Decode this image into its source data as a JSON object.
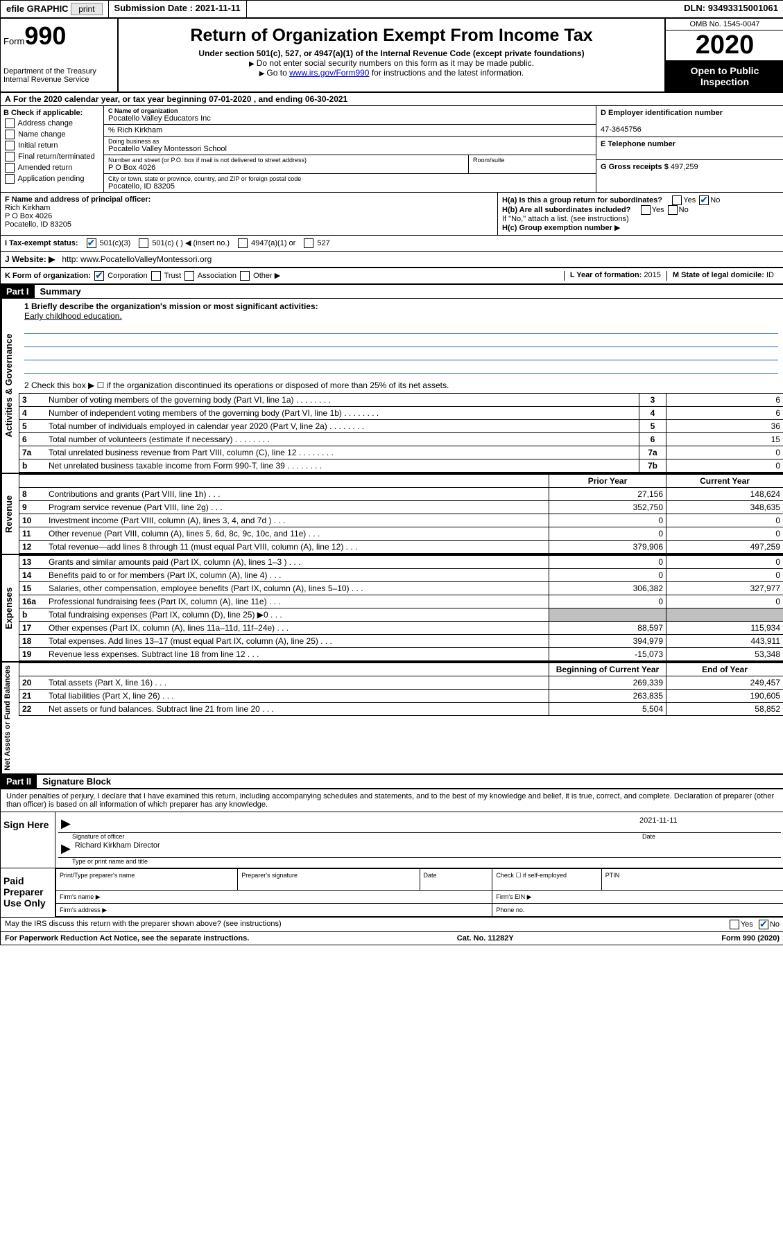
{
  "top_bar": {
    "efile": "efile GRAPHIC",
    "print": "print",
    "submission_label": "Submission Date :",
    "submission_date": "2021-11-11",
    "dln_label": "DLN:",
    "dln": "93493315001061"
  },
  "header": {
    "form_label": "Form",
    "form_number": "990",
    "dept1": "Department of the Treasury",
    "dept2": "Internal Revenue Service",
    "title": "Return of Organization Exempt From Income Tax",
    "subtitle": "Under section 501(c), 527, or 4947(a)(1) of the Internal Revenue Code (except private foundations)",
    "note1": "Do not enter social security numbers on this form as it may be made public.",
    "note2_pre": "Go to ",
    "note2_link": "www.irs.gov/Form990",
    "note2_post": " for instructions and the latest information.",
    "omb": "OMB No. 1545-0047",
    "year": "2020",
    "open_public": "Open to Public Inspection"
  },
  "row_a": {
    "text": "For the 2020 calendar year, or tax year beginning 07-01-2020    , and ending 06-30-2021",
    "prefix": "A"
  },
  "section_b": {
    "label": "B Check if applicable:",
    "items": [
      "Address change",
      "Name change",
      "Initial return",
      "Final return/terminated",
      "Amended return",
      "Application pending"
    ]
  },
  "section_c": {
    "name_label": "C Name of organization",
    "name": "Pocatello Valley Educators Inc",
    "care_of": "% Rich Kirkham",
    "dba_label": "Doing business as",
    "dba": "Pocatello Valley Montessori School",
    "addr_label": "Number and street (or P.O. box if mail is not delivered to street address)",
    "addr": "P O Box 4026",
    "room_label": "Room/suite",
    "city_label": "City or town, state or province, country, and ZIP or foreign postal code",
    "city": "Pocatello, ID  83205"
  },
  "section_d": {
    "ein_label": "D Employer identification number",
    "ein": "47-3645756",
    "tel_label": "E Telephone number",
    "tel": "",
    "gross_label": "G Gross receipts $",
    "gross": "497,259"
  },
  "section_f": {
    "label": "F  Name and address of principal officer:",
    "name": "Rich Kirkham",
    "addr1": "P O Box 4026",
    "addr2": "Pocatello, ID  83205"
  },
  "section_h": {
    "ha_label": "H(a)  Is this a group return for subordinates?",
    "hb_label": "H(b)  Are all subordinates included?",
    "hb_note": "If \"No,\" attach a list. (see instructions)",
    "hc_label": "H(c)  Group exemption number",
    "yes": "Yes",
    "no": "No"
  },
  "row_i": {
    "label": "I  Tax-exempt status:",
    "opt1": "501(c)(3)",
    "opt2": "501(c) (   ) ◀ (insert no.)",
    "opt3": "4947(a)(1) or",
    "opt4": "527"
  },
  "row_j": {
    "label": "J  Website: ▶",
    "value": "http:  www.PocatelloValleyMontessori.org"
  },
  "row_k": {
    "k_label": "K Form of organization:",
    "k_opts": [
      "Corporation",
      "Trust",
      "Association",
      "Other ▶"
    ],
    "l_label": "L Year of formation:",
    "l_val": "2015",
    "m_label": "M State of legal domicile:",
    "m_val": "ID"
  },
  "part1": {
    "header": "Part I",
    "title": "Summary",
    "line1_label": "1  Briefly describe the organization's mission or most significant activities:",
    "line1_val": "Early childhood education.",
    "line2": "2   Check this box ▶ ☐  if the organization discontinued its operations or disposed of more than 25% of its net assets.",
    "vert_labels": {
      "gov": "Activities & Governance",
      "rev": "Revenue",
      "exp": "Expenses",
      "net": "Net Assets or Fund Balances"
    },
    "gov_rows": [
      {
        "n": "3",
        "label": "Number of voting members of the governing body (Part VI, line 1a)",
        "box": "3",
        "val": "6"
      },
      {
        "n": "4",
        "label": "Number of independent voting members of the governing body (Part VI, line 1b)",
        "box": "4",
        "val": "6"
      },
      {
        "n": "5",
        "label": "Total number of individuals employed in calendar year 2020 (Part V, line 2a)",
        "box": "5",
        "val": "36"
      },
      {
        "n": "6",
        "label": "Total number of volunteers (estimate if necessary)",
        "box": "6",
        "val": "15"
      },
      {
        "n": "7a",
        "label": "Total unrelated business revenue from Part VIII, column (C), line 12",
        "box": "7a",
        "val": "0"
      },
      {
        "n": "b",
        "label": "Net unrelated business taxable income from Form 990-T, line 39",
        "box": "7b",
        "val": "0"
      }
    ],
    "year_headers": {
      "prior": "Prior Year",
      "current": "Current Year",
      "begin": "Beginning of Current Year",
      "end": "End of Year"
    },
    "rev_rows": [
      {
        "n": "8",
        "label": "Contributions and grants (Part VIII, line 1h)",
        "prior": "27,156",
        "current": "148,624"
      },
      {
        "n": "9",
        "label": "Program service revenue (Part VIII, line 2g)",
        "prior": "352,750",
        "current": "348,635"
      },
      {
        "n": "10",
        "label": "Investment income (Part VIII, column (A), lines 3, 4, and 7d )",
        "prior": "0",
        "current": "0"
      },
      {
        "n": "11",
        "label": "Other revenue (Part VIII, column (A), lines 5, 6d, 8c, 9c, 10c, and 11e)",
        "prior": "0",
        "current": "0"
      },
      {
        "n": "12",
        "label": "Total revenue—add lines 8 through 11 (must equal Part VIII, column (A), line 12)",
        "prior": "379,906",
        "current": "497,259"
      }
    ],
    "exp_rows": [
      {
        "n": "13",
        "label": "Grants and similar amounts paid (Part IX, column (A), lines 1–3 )",
        "prior": "0",
        "current": "0"
      },
      {
        "n": "14",
        "label": "Benefits paid to or for members (Part IX, column (A), line 4)",
        "prior": "0",
        "current": "0"
      },
      {
        "n": "15",
        "label": "Salaries, other compensation, employee benefits (Part IX, column (A), lines 5–10)",
        "prior": "306,382",
        "current": "327,977"
      },
      {
        "n": "16a",
        "label": "Professional fundraising fees (Part IX, column (A), line 11e)",
        "prior": "0",
        "current": "0"
      },
      {
        "n": "b",
        "label": "Total fundraising expenses (Part IX, column (D), line 25) ▶0",
        "prior": "",
        "current": "",
        "shaded": true
      },
      {
        "n": "17",
        "label": "Other expenses (Part IX, column (A), lines 11a–11d, 11f–24e)",
        "prior": "88,597",
        "current": "115,934"
      },
      {
        "n": "18",
        "label": "Total expenses. Add lines 13–17 (must equal Part IX, column (A), line 25)",
        "prior": "394,979",
        "current": "443,911"
      },
      {
        "n": "19",
        "label": "Revenue less expenses. Subtract line 18 from line 12",
        "prior": "-15,073",
        "current": "53,348"
      }
    ],
    "net_rows": [
      {
        "n": "20",
        "label": "Total assets (Part X, line 16)",
        "prior": "269,339",
        "current": "249,457"
      },
      {
        "n": "21",
        "label": "Total liabilities (Part X, line 26)",
        "prior": "263,835",
        "current": "190,605"
      },
      {
        "n": "22",
        "label": "Net assets or fund balances. Subtract line 21 from line 20",
        "prior": "5,504",
        "current": "58,852"
      }
    ]
  },
  "part2": {
    "header": "Part II",
    "title": "Signature Block",
    "declaration": "Under penalties of perjury, I declare that I have examined this return, including accompanying schedules and statements, and to the best of my knowledge and belief, it is true, correct, and complete. Declaration of preparer (other than officer) is based on all information of which preparer has any knowledge.",
    "sign_here": "Sign Here",
    "sig_officer_label": "Signature of officer",
    "sig_date": "2021-11-11",
    "sig_date_label": "Date",
    "sig_name": "Richard Kirkham  Director",
    "sig_name_label": "Type or print name and title",
    "paid_label": "Paid Preparer Use Only",
    "prep_name_label": "Print/Type preparer's name",
    "prep_sig_label": "Preparer's signature",
    "prep_date_label": "Date",
    "prep_check_label": "Check ☐ if self-employed",
    "ptin_label": "PTIN",
    "firm_name_label": "Firm's name    ▶",
    "firm_ein_label": "Firm's EIN ▶",
    "firm_addr_label": "Firm's address ▶",
    "phone_label": "Phone no."
  },
  "footer": {
    "discuss": "May the IRS discuss this return with the preparer shown above? (see instructions)",
    "yes": "Yes",
    "no": "No",
    "paperwork": "For Paperwork Reduction Act Notice, see the separate instructions.",
    "cat": "Cat. No. 11282Y",
    "form": "Form 990 (2020)"
  }
}
